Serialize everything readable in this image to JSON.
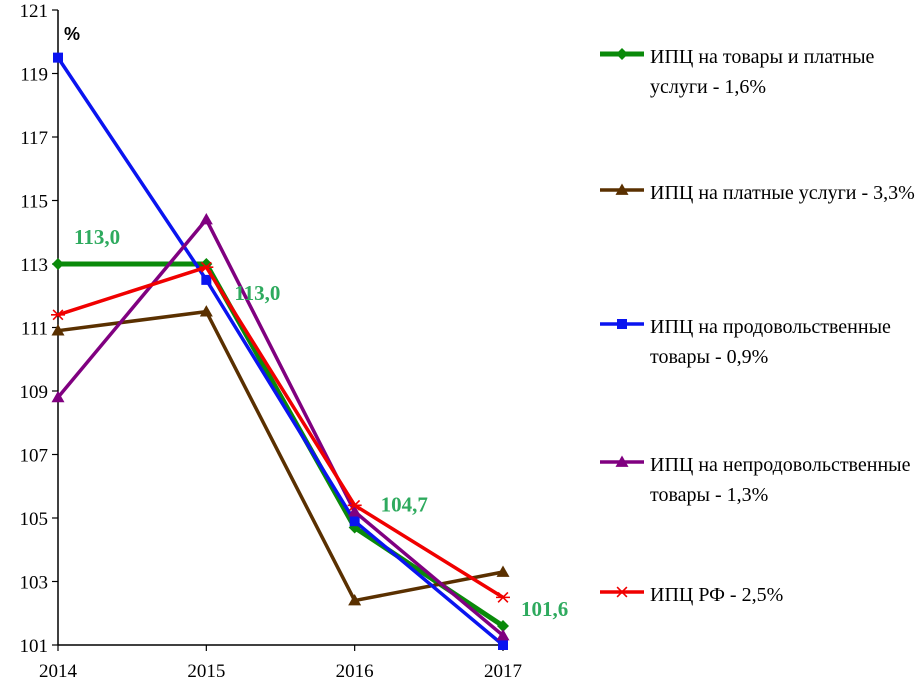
{
  "chart_data": {
    "type": "line",
    "x": [
      "2014",
      "2015",
      "2016",
      "2017"
    ],
    "y_unit_label": "%",
    "ylim": [
      101,
      121
    ],
    "yticks": [
      101,
      103,
      105,
      107,
      109,
      111,
      113,
      115,
      117,
      119,
      121
    ],
    "series": [
      {
        "name": "ИПЦ на товары и платные услуги - 1,6%",
        "values": [
          113.0,
          113.0,
          104.7,
          101.6
        ],
        "color": "#0a8a0a",
        "marker": "diamond"
      },
      {
        "name": "ИПЦ на платные услуги - 3,3%",
        "values": [
          110.9,
          111.5,
          102.4,
          103.3
        ],
        "color": "#5a3000",
        "marker": "triangle"
      },
      {
        "name": "ИПЦ на продовольственные товары - 0,9%",
        "values": [
          119.5,
          112.5,
          104.9,
          101.0
        ],
        "color": "#0a14f0",
        "marker": "square"
      },
      {
        "name": "ИПЦ на непродовольственные товары - 1,3%",
        "values": [
          108.8,
          114.4,
          105.2,
          101.3
        ],
        "color": "#800080",
        "marker": "triangle"
      },
      {
        "name": "ИПЦ РФ - 2,5%",
        "values": [
          111.4,
          112.9,
          105.4,
          102.5
        ],
        "color": "#f00000",
        "marker": "star"
      }
    ],
    "data_labels": [
      {
        "text": "113,0",
        "x": "2014",
        "value": 113.0
      },
      {
        "text": "113,0",
        "x": "2015",
        "value": 113.0
      },
      {
        "text": "104,7",
        "x": "2016",
        "value": 104.7
      },
      {
        "text": "101,6",
        "x": "2017",
        "value": 101.6
      }
    ],
    "legend_position": "right",
    "grid": false
  }
}
